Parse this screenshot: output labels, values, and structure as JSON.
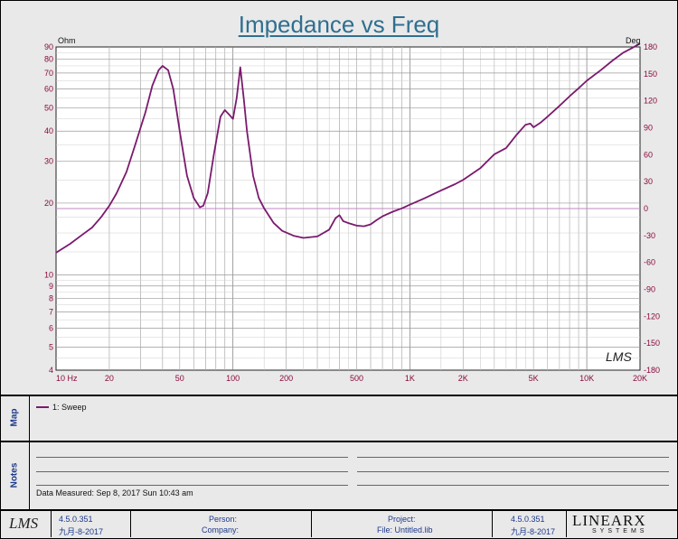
{
  "chart_data": {
    "type": "line",
    "title": "Impedance vs Freq",
    "y_left_unit": "Ohm",
    "y_right_unit": "Deg",
    "x_scale": "log",
    "y_left_scale": "log",
    "xlim": [
      10,
      20000
    ],
    "ylim_left": [
      4,
      90
    ],
    "ylim_right": [
      -180,
      180
    ],
    "grid": true,
    "x_ticks": [
      {
        "v": 10,
        "label": "10  Hz"
      },
      {
        "v": 20,
        "label": "20"
      },
      {
        "v": 50,
        "label": "50"
      },
      {
        "v": 100,
        "label": "100"
      },
      {
        "v": 200,
        "label": "200"
      },
      {
        "v": 500,
        "label": "500"
      },
      {
        "v": 1000,
        "label": "1K"
      },
      {
        "v": 2000,
        "label": "2K"
      },
      {
        "v": 5000,
        "label": "5K"
      },
      {
        "v": 10000,
        "label": "10K"
      },
      {
        "v": 20000,
        "label": "20K"
      }
    ],
    "y_left_ticks": [
      {
        "v": 90,
        "label": "90"
      },
      {
        "v": 80,
        "label": "80"
      },
      {
        "v": 70,
        "label": "70"
      },
      {
        "v": 60,
        "label": "60"
      },
      {
        "v": 50,
        "label": "50"
      },
      {
        "v": 40,
        "label": "40"
      },
      {
        "v": 30,
        "label": "30"
      },
      {
        "v": 20,
        "label": "20"
      },
      {
        "v": 10,
        "label": "10"
      },
      {
        "v": 9,
        "label": "9"
      },
      {
        "v": 8,
        "label": "8"
      },
      {
        "v": 7,
        "label": "7"
      },
      {
        "v": 6,
        "label": "6"
      },
      {
        "v": 5,
        "label": "5"
      },
      {
        "v": 4,
        "label": "4"
      }
    ],
    "y_right_ticks": [
      "180",
      "150",
      "120",
      "90",
      "60",
      "30",
      "0",
      "-30",
      "-60",
      "-90",
      "-120",
      "-150",
      "-180"
    ],
    "reference_line": {
      "axis": "right",
      "value": 0
    },
    "series": [
      {
        "name": "1: Sweep",
        "color": "#7a1a6e",
        "axis": "left",
        "x": [
          10,
          12,
          14,
          16,
          18,
          20,
          22,
          25,
          28,
          32,
          35,
          38,
          40,
          43,
          46,
          50,
          55,
          60,
          65,
          68,
          72,
          78,
          85,
          90,
          95,
          100,
          105,
          110,
          115,
          120,
          130,
          140,
          150,
          170,
          190,
          220,
          250,
          300,
          350,
          380,
          400,
          420,
          450,
          500,
          550,
          600,
          650,
          700,
          800,
          900,
          1000,
          1200,
          1500,
          1800,
          2000,
          2500,
          3000,
          3500,
          4000,
          4500,
          4800,
          5000,
          5500,
          6000,
          7000,
          8000,
          9000,
          10000,
          12000,
          14000,
          16000,
          18000,
          20000
        ],
        "values": [
          12.4,
          13.5,
          14.7,
          15.8,
          17.5,
          19.5,
          22,
          27,
          35,
          48,
          62,
          72,
          75,
          72,
          60,
          40,
          26,
          21,
          19.2,
          19.5,
          22,
          32,
          46,
          49,
          47,
          45,
          55,
          74,
          55,
          40,
          26,
          21,
          19,
          16.5,
          15.3,
          14.6,
          14.3,
          14.5,
          15.5,
          17.3,
          17.8,
          16.8,
          16.5,
          16.1,
          16,
          16.3,
          17,
          17.6,
          18.4,
          19,
          19.7,
          20.9,
          22.6,
          24,
          25,
          28,
          32,
          34,
          38.5,
          42.5,
          43,
          41.5,
          43.5,
          46,
          51,
          56,
          60.5,
          65,
          72,
          79,
          85,
          89,
          93
        ]
      }
    ],
    "watermark": "LMS"
  },
  "map": {
    "label": "Map",
    "legend_item": "1: Sweep"
  },
  "notes": {
    "label": "Notes",
    "measured": "Data Measured: Sep 8, 2017 Sun 10:43 am"
  },
  "footer": {
    "logo_left": "LMS",
    "version_left": "4.5.0.351",
    "date_left": "九月-8-2017",
    "person_label": "Person:",
    "company_label": "Company:",
    "project_label": "Project:",
    "file_label": "File: Untitled.lib",
    "version_right": "4.5.0.351",
    "date_right": "九月-8-2017",
    "brand": "LINEARX",
    "brand_sub": "SYSTEMS"
  }
}
